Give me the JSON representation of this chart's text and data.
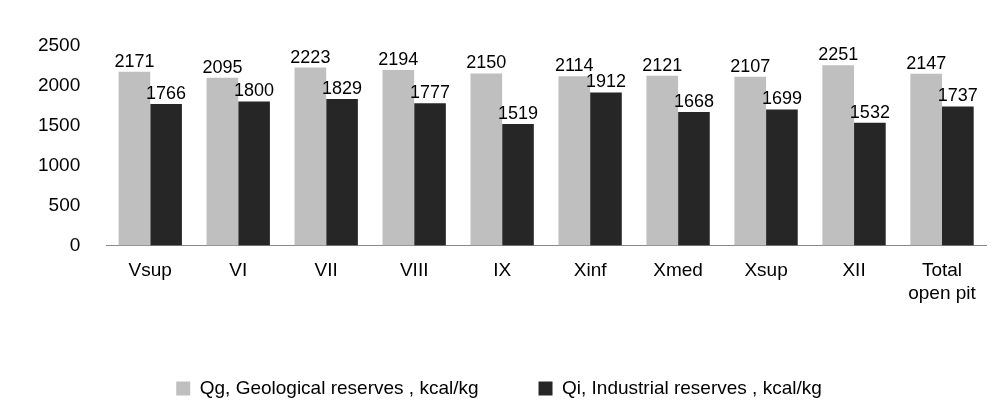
{
  "chart_data": {
    "type": "bar",
    "categories": [
      "Vsup",
      "VI",
      "VII",
      "VIII",
      "IX",
      "Xinf",
      "Xmed",
      "Xsup",
      "XII",
      "Total open pit"
    ],
    "series": [
      {
        "name": "Qg, Geological reserves , kcal/kg",
        "color": "#bfbfbf",
        "values": [
          2171,
          2095,
          2223,
          2194,
          2150,
          2114,
          2121,
          2107,
          2251,
          2147
        ]
      },
      {
        "name": "Qi, Industrial reserves , kcal/kg",
        "color": "#262626",
        "values": [
          1766,
          1800,
          1829,
          1777,
          1519,
          1912,
          1668,
          1699,
          1532,
          1737
        ]
      }
    ],
    "ylim": [
      0,
      2500
    ],
    "yticks": [
      0,
      500,
      1000,
      1500,
      2000,
      2500
    ],
    "grid": false,
    "legend": "bottom",
    "data_labels": true
  }
}
